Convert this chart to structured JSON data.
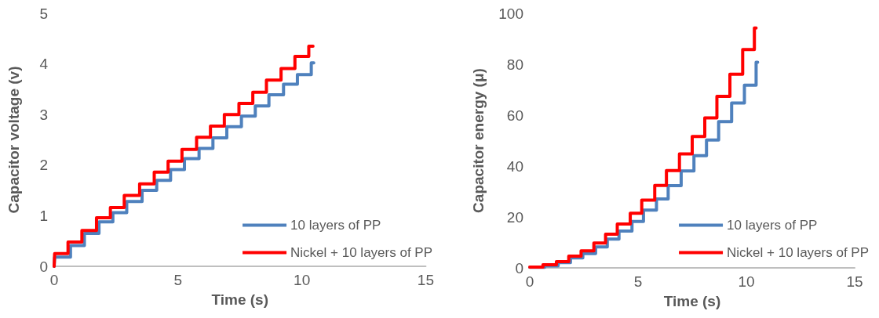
{
  "chart_data": [
    {
      "type": "step",
      "xlabel": "Time (s)",
      "ylabel": "Capacitor voltage (v)",
      "xlim": [
        0,
        15
      ],
      "xticks": [
        0,
        5,
        10,
        15
      ],
      "ylim": [
        0,
        5
      ],
      "yticks": [
        0,
        1,
        2,
        3,
        4,
        5
      ],
      "grid": false,
      "legend": "bottom right",
      "marker": "none",
      "line_style": "solid",
      "series": [
        {
          "name": "10 layers of PP",
          "color": "#4f81bd",
          "x": [
            0,
            0.02,
            0.66,
            1.22,
            1.81,
            2.37,
            2.93,
            3.55,
            4.14,
            4.7,
            5.26,
            5.85,
            6.41,
            6.97,
            7.56,
            8.12,
            8.67,
            9.26,
            9.82,
            10.38,
            10.48
          ],
          "values": [
            0,
            0.18,
            0.41,
            0.65,
            0.88,
            1.06,
            1.28,
            1.5,
            1.7,
            1.91,
            2.13,
            2.33,
            2.54,
            2.76,
            2.97,
            3.17,
            3.39,
            3.6,
            3.79,
            4.02,
            4.02
          ]
        },
        {
          "name": "Nickel + 10 layers of PP",
          "color": "#ff0000",
          "x": [
            0,
            0.02,
            0.56,
            1.12,
            1.71,
            2.27,
            2.83,
            3.45,
            4.04,
            4.6,
            5.16,
            5.75,
            6.31,
            6.87,
            7.46,
            8.02,
            8.57,
            9.16,
            9.72,
            10.28,
            10.45
          ],
          "values": [
            0,
            0.25,
            0.48,
            0.71,
            0.96,
            1.16,
            1.4,
            1.63,
            1.86,
            2.08,
            2.31,
            2.55,
            2.77,
            3.0,
            3.22,
            3.44,
            3.68,
            3.91,
            4.15,
            4.35,
            4.35
          ]
        }
      ]
    },
    {
      "type": "step",
      "xlabel": "Time (s)",
      "ylabel": "Capacitor energy (μ)",
      "xlim": [
        0,
        15
      ],
      "xticks": [
        0,
        5,
        10,
        15
      ],
      "ylim": [
        0,
        100
      ],
      "yticks": [
        0,
        20,
        40,
        60,
        80,
        100
      ],
      "grid": false,
      "legend": "bottom right",
      "marker": "none",
      "line_style": "solid",
      "series": [
        {
          "name": "10 layers of PP",
          "color": "#4f81bd",
          "x": [
            0,
            0.69,
            1.31,
            1.88,
            2.45,
            3.04,
            3.58,
            4.12,
            4.72,
            5.25,
            5.85,
            6.39,
            6.99,
            7.58,
            8.16,
            8.72,
            9.32,
            9.91,
            10.45,
            10.52
          ],
          "values": [
            0.2,
            0.8,
            2.1,
            3.9,
            5.6,
            8.2,
            11.3,
            14.5,
            18.2,
            22.7,
            27.1,
            32.3,
            38.1,
            44.1,
            50.2,
            57.5,
            64.8,
            71.8,
            80.8,
            80.8
          ]
        },
        {
          "name": "Nickel + 10 layers of PP",
          "color": "#ff0000",
          "x": [
            0,
            0.61,
            1.23,
            1.8,
            2.37,
            2.96,
            3.5,
            4.04,
            4.64,
            5.17,
            5.77,
            6.31,
            6.91,
            7.5,
            8.08,
            8.64,
            9.24,
            9.83,
            10.37,
            10.45
          ],
          "values": [
            0.3,
            1.2,
            2.5,
            4.6,
            6.7,
            9.8,
            13.2,
            17.2,
            21.5,
            26.6,
            32.4,
            38.2,
            44.8,
            51.6,
            58.9,
            67.4,
            76.1,
            85.8,
            94.2,
            94.2
          ]
        }
      ]
    }
  ]
}
